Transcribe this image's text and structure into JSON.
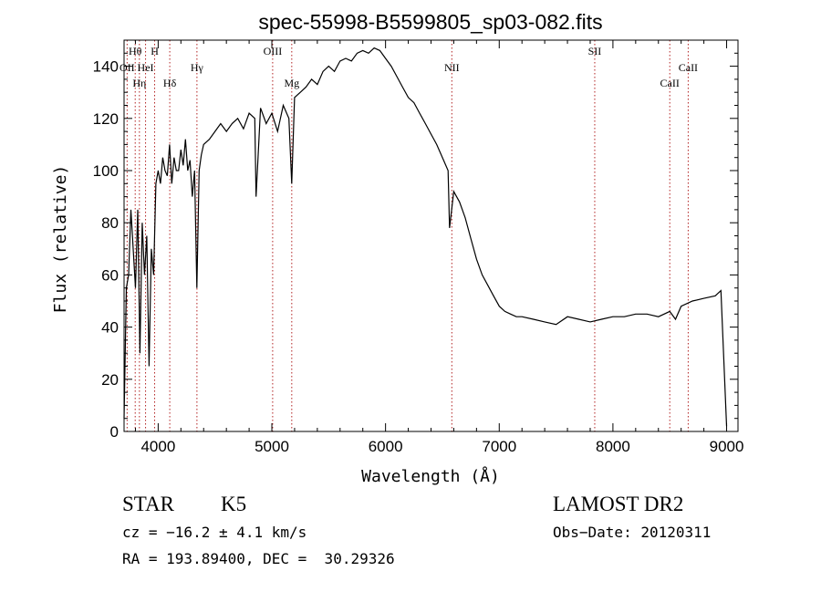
{
  "chart_data": {
    "type": "line",
    "title": "spec-55998-B5599805_sp03-082.fits",
    "xlabel": "Wavelength (Å)",
    "ylabel": "Flux (relative)",
    "xlim": [
      3700,
      9100
    ],
    "ylim": [
      0,
      150
    ],
    "xticks": [
      4000,
      5000,
      6000,
      7000,
      8000,
      9000
    ],
    "yticks": [
      0,
      20,
      40,
      60,
      80,
      100,
      120,
      140
    ],
    "grid": false,
    "line_color": "#000000",
    "marker_color": "#b22222",
    "x": [
      3700,
      3720,
      3740,
      3760,
      3780,
      3800,
      3820,
      3840,
      3860,
      3880,
      3900,
      3920,
      3940,
      3960,
      3980,
      4000,
      4020,
      4040,
      4060,
      4080,
      4100,
      4120,
      4140,
      4160,
      4180,
      4200,
      4220,
      4240,
      4260,
      4280,
      4300,
      4320,
      4340,
      4360,
      4380,
      4400,
      4450,
      4500,
      4550,
      4600,
      4650,
      4700,
      4750,
      4800,
      4850,
      4861,
      4900,
      4950,
      5000,
      5050,
      5100,
      5150,
      5175,
      5200,
      5250,
      5300,
      5350,
      5400,
      5450,
      5500,
      5550,
      5600,
      5650,
      5700,
      5750,
      5800,
      5850,
      5900,
      5950,
      6000,
      6050,
      6100,
      6150,
      6200,
      6250,
      6300,
      6350,
      6400,
      6450,
      6500,
      6550,
      6563,
      6600,
      6650,
      6700,
      6750,
      6800,
      6850,
      6900,
      6950,
      7000,
      7050,
      7100,
      7150,
      7200,
      7300,
      7400,
      7500,
      7600,
      7700,
      7800,
      7900,
      8000,
      8100,
      8200,
      8300,
      8400,
      8500,
      8550,
      8600,
      8700,
      8800,
      8900,
      8950,
      9000
    ],
    "y": [
      5,
      55,
      60,
      85,
      70,
      55,
      85,
      30,
      80,
      60,
      75,
      25,
      70,
      60,
      95,
      100,
      95,
      105,
      100,
      98,
      110,
      95,
      105,
      100,
      100,
      108,
      102,
      112,
      100,
      104,
      90,
      100,
      55,
      100,
      106,
      110,
      112,
      115,
      118,
      115,
      118,
      120,
      116,
      122,
      120,
      90,
      124,
      118,
      122,
      115,
      125,
      120,
      95,
      128,
      130,
      132,
      135,
      133,
      138,
      140,
      138,
      142,
      143,
      142,
      145,
      146,
      145,
      147,
      146,
      143,
      140,
      136,
      132,
      128,
      126,
      122,
      118,
      114,
      110,
      105,
      100,
      78,
      92,
      88,
      82,
      74,
      66,
      60,
      56,
      52,
      48,
      46,
      45,
      44,
      44,
      43,
      42,
      41,
      44,
      43,
      42,
      43,
      44,
      44,
      45,
      45,
      44,
      46,
      43,
      48,
      50,
      51,
      52,
      54,
      2
    ],
    "line_markers": [
      {
        "label": "Hθ",
        "wavelength": 3798,
        "row": 1
      },
      {
        "label": "OII",
        "wavelength": 3727,
        "row": 2
      },
      {
        "label": "Hη",
        "wavelength": 3835,
        "row": 3
      },
      {
        "label": "HeI",
        "wavelength": 3889,
        "row": 2
      },
      {
        "label": "H",
        "wavelength": 3969,
        "row": 1
      },
      {
        "label": "Hδ",
        "wavelength": 4102,
        "row": 3
      },
      {
        "label": "Hγ",
        "wavelength": 4341,
        "row": 2
      },
      {
        "label": "OIII",
        "wavelength": 5007,
        "row": 1
      },
      {
        "label": "Mg",
        "wavelength": 5175,
        "row": 3
      },
      {
        "label": "NII",
        "wavelength": 6583,
        "row": 2
      },
      {
        "label": "SII",
        "wavelength": 7840,
        "row": 1
      },
      {
        "label": "CaII",
        "wavelength": 8662,
        "row": 2
      },
      {
        "label": "CaII",
        "wavelength": 8500,
        "row": 3
      }
    ]
  },
  "info": {
    "object_class": "STAR",
    "subclass": "K5",
    "survey": "LAMOST DR2",
    "redshift_line": "cz = −16.2 ± 4.1 km/s",
    "obs_date_line": "Obs−Date: 20120311",
    "position_line": "RA = 193.89400, DEC =  30.29326"
  }
}
